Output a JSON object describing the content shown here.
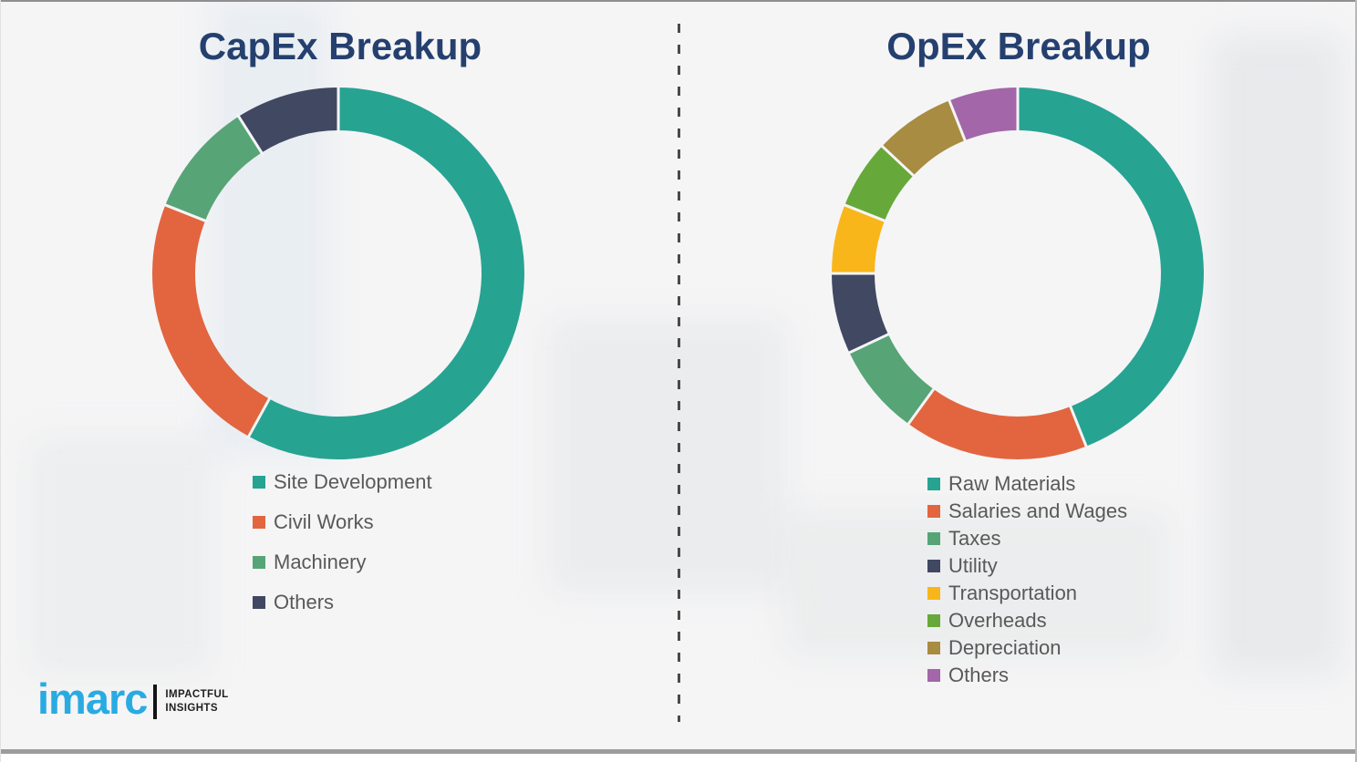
{
  "page": {
    "background_color": "#f5f5f6",
    "divider_color": "#4a4a4a",
    "title_color": "#25406f",
    "legend_text_color": "#595959"
  },
  "logo": {
    "brand": "imarc",
    "tagline_line1": "IMPACTFUL",
    "tagline_line2": "INSIGHTS",
    "brand_color": "#29abe2",
    "bar_color": "#141414",
    "tagline_color": "#1e1e1e"
  },
  "chart_data": [
    {
      "id": "capex",
      "type": "pie",
      "subtype": "donut",
      "title": "CapEx Breakup",
      "categories": [
        "Site Development",
        "Civil Works",
        "Machinery",
        "Others"
      ],
      "values": [
        58,
        23,
        10,
        9
      ],
      "colors": [
        "#27a392",
        "#e2653f",
        "#57a477",
        "#404862"
      ],
      "start_angle_deg": 0,
      "direction": "clockwise",
      "legend_position": "bottom-left",
      "data_labels": false
    },
    {
      "id": "opex",
      "type": "pie",
      "subtype": "donut",
      "title": "OpEx Breakup",
      "categories": [
        "Raw Materials",
        "Salaries and Wages",
        "Taxes",
        "Utility",
        "Transportation",
        "Overheads",
        "Depreciation",
        "Others"
      ],
      "values": [
        44,
        16,
        8,
        7,
        6,
        6,
        7,
        6
      ],
      "colors": [
        "#27a392",
        "#e2653f",
        "#57a477",
        "#404862",
        "#f8b61a",
        "#66a93a",
        "#a78c41",
        "#a366a9"
      ],
      "start_angle_deg": 0,
      "direction": "clockwise",
      "legend_position": "bottom-left",
      "data_labels": false
    }
  ]
}
